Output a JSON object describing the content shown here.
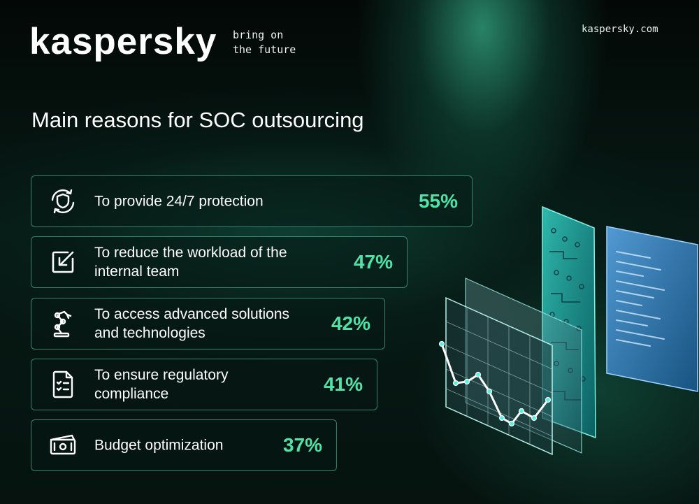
{
  "brand": {
    "logo_text": "kaspersky",
    "tagline_line1": "bring on",
    "tagline_line2": "the future",
    "website": "kaspersky.com"
  },
  "title": "Main reasons for SOC outsourcing",
  "chart_data": {
    "type": "bar",
    "title": "Main reasons for SOC outsourcing",
    "categories": [
      "To provide 24/7 protection",
      "To reduce the workload of the internal team",
      "To access advanced solutions and technologies",
      "To ensure regulatory compliance",
      "Budget optimization"
    ],
    "values": [
      55,
      47,
      42,
      41,
      37
    ],
    "value_labels": [
      "55%",
      "47%",
      "42%",
      "41%",
      "37%"
    ],
    "unit": "%",
    "orientation": "horizontal",
    "accent_color": "#4fe3a9",
    "icons": [
      "shield-cycle-icon",
      "checkbox-arrow-icon",
      "robotic-arm-icon",
      "checklist-document-icon",
      "banknotes-icon"
    ]
  },
  "rows": [
    {
      "line1": "To provide 24/7 protection",
      "line2": "",
      "value": "55%"
    },
    {
      "line1": "To reduce the workload of the",
      "line2": "internal team",
      "value": "47%"
    },
    {
      "line1": "To access advanced solutions",
      "line2": "and technologies",
      "value": "42%"
    },
    {
      "line1": "To ensure regulatory",
      "line2": "compliance",
      "value": "41%"
    },
    {
      "line1": "Budget optimization",
      "line2": "",
      "value": "37%"
    }
  ]
}
